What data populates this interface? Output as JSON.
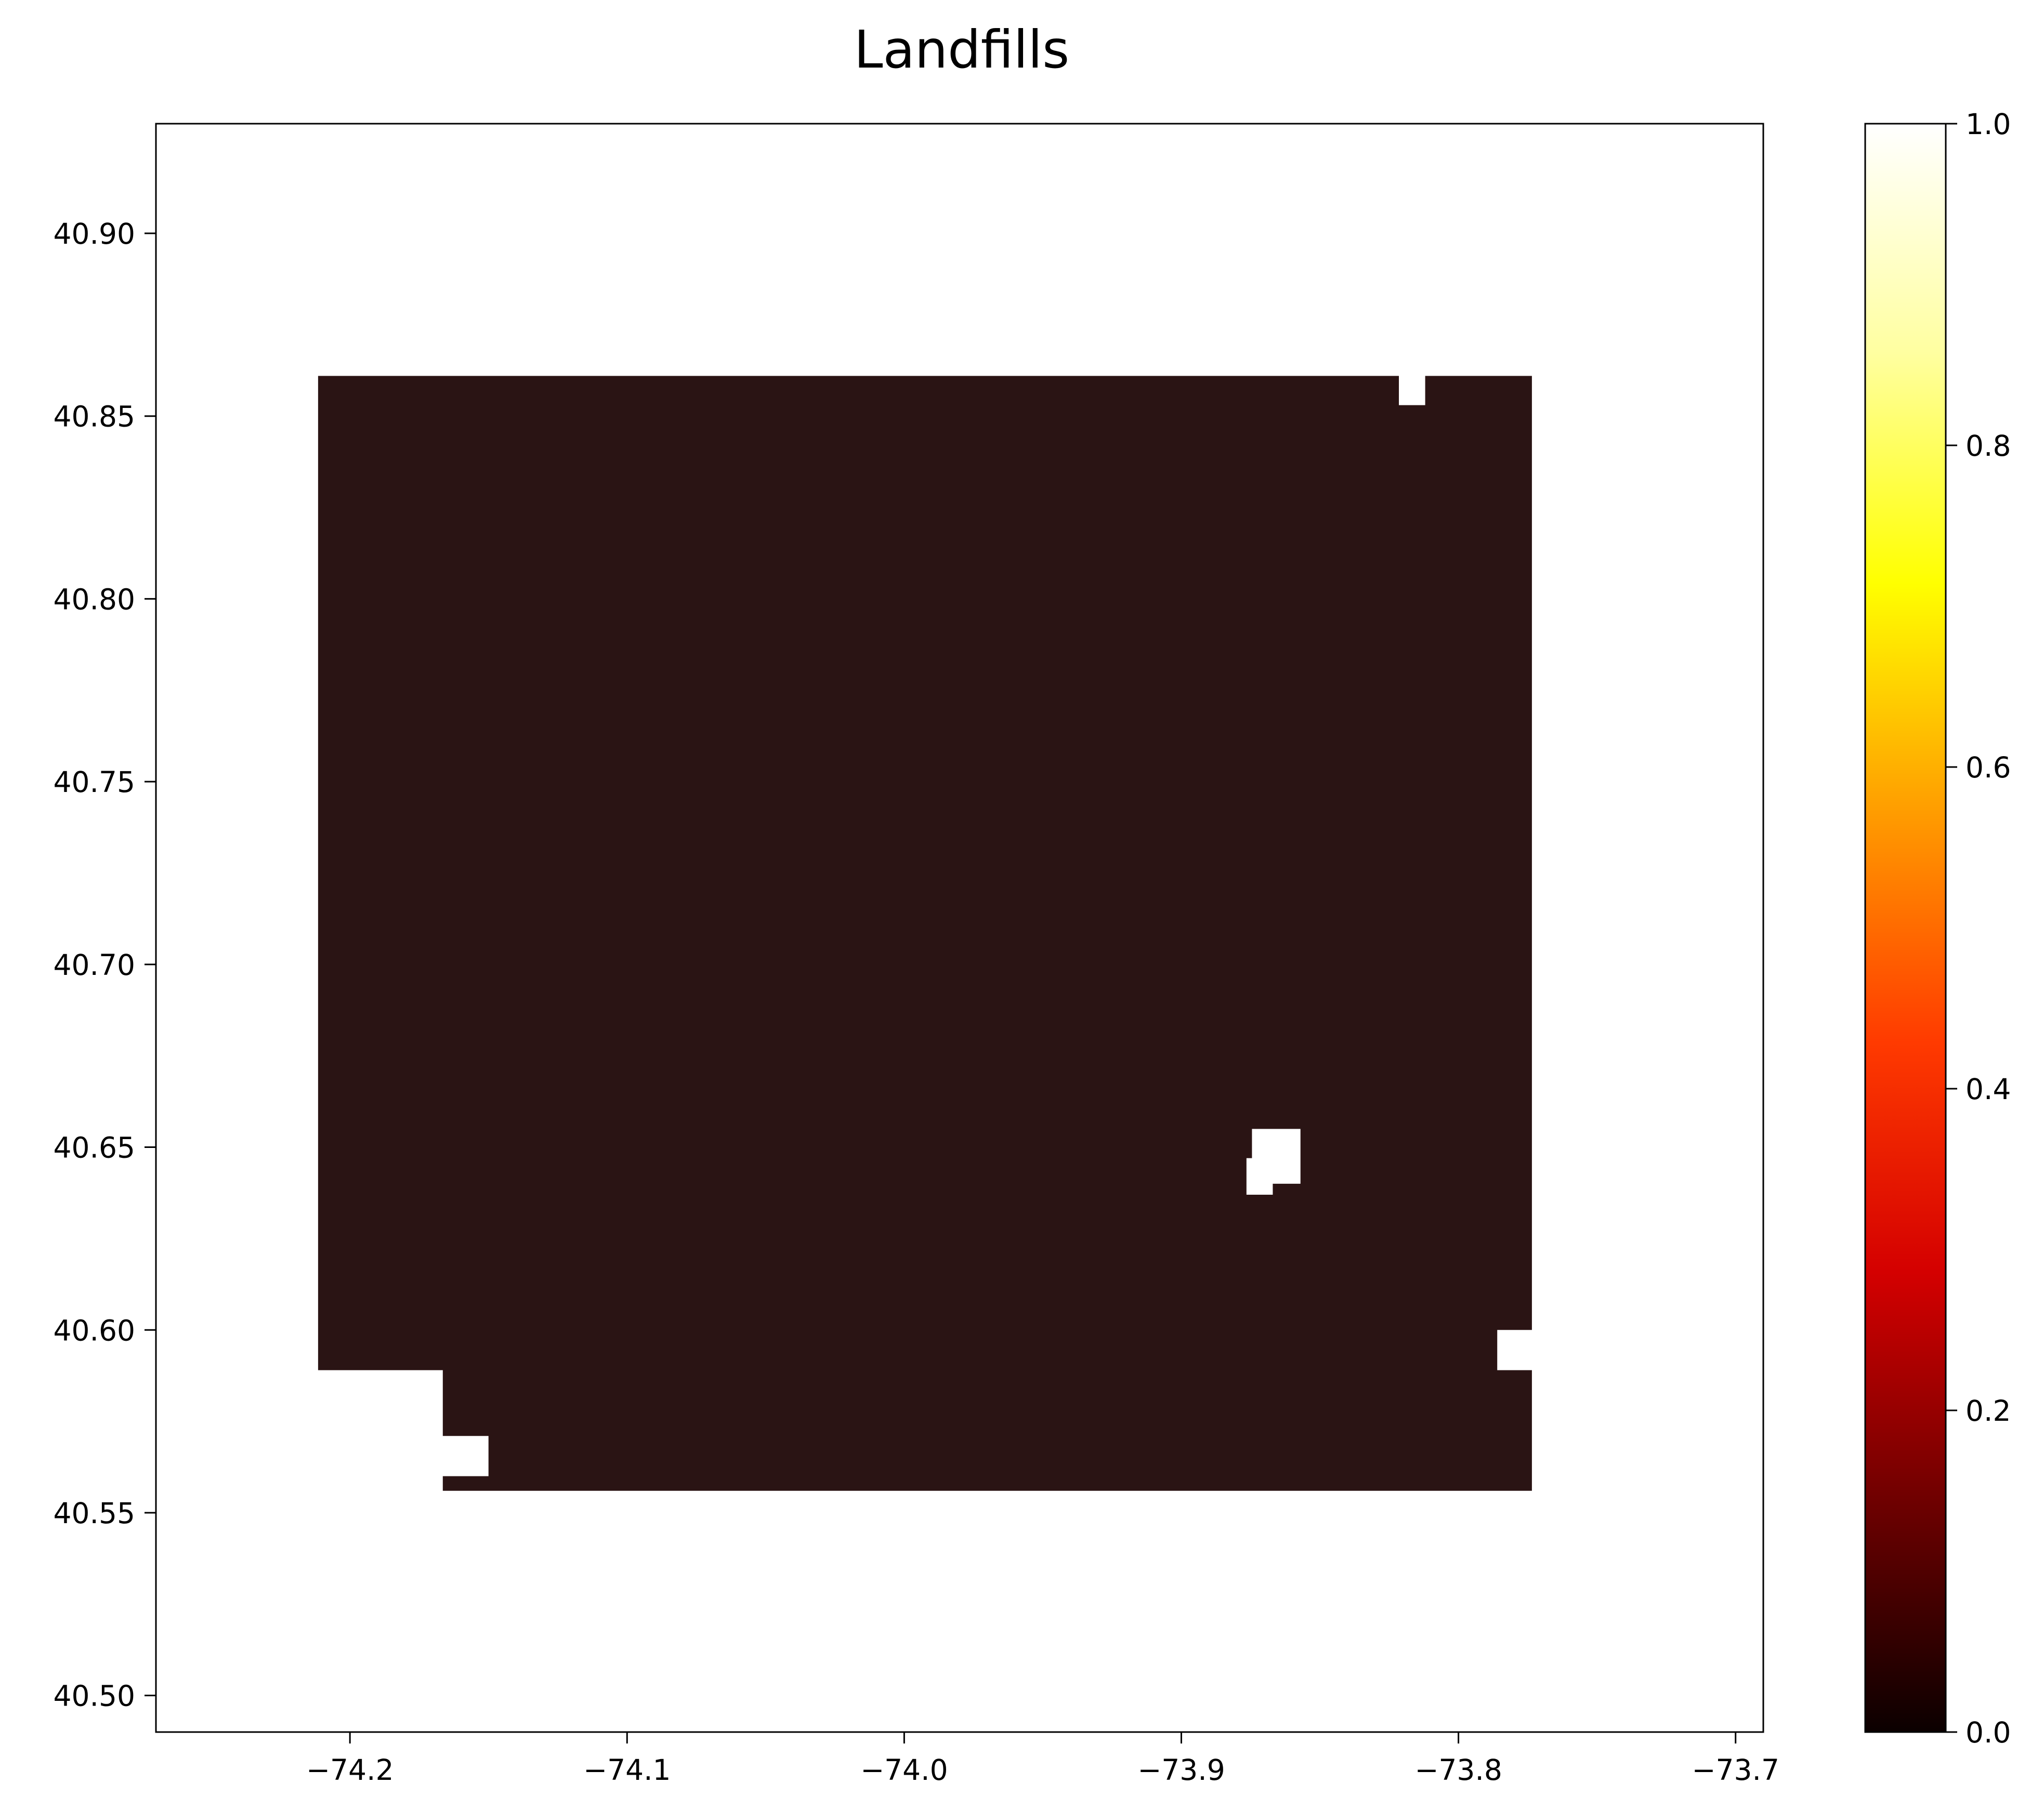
{
  "chart_data": {
    "type": "heatmap",
    "title": "Landfills",
    "xlabel": "",
    "ylabel": "",
    "xlim": [
      -74.27,
      -73.69
    ],
    "ylim": [
      40.49,
      40.93
    ],
    "x_ticks": [
      "−74.2",
      "−74.1",
      "−74.0",
      "−73.9",
      "−73.8",
      "−73.7"
    ],
    "x_tick_values": [
      -74.2,
      -74.1,
      -74.0,
      -73.9,
      -73.8,
      -73.7
    ],
    "y_ticks": [
      "40.50",
      "40.55",
      "40.60",
      "40.65",
      "40.70",
      "40.75",
      "40.80",
      "40.85",
      "40.90"
    ],
    "y_tick_values": [
      40.5,
      40.55,
      40.6,
      40.65,
      40.7,
      40.75,
      40.8,
      40.85,
      40.9
    ],
    "colormap": "hot",
    "colormap_stops": [
      "#0b0000",
      "#6e0000",
      "#d40000",
      "#ff3a00",
      "#ff9c00",
      "#ffff00",
      "#ffffa0",
      "#ffffff"
    ],
    "colorbar": {
      "range": [
        0.0,
        1.0
      ],
      "ticks": [
        "0.0",
        "0.2",
        "0.4",
        "0.6",
        "0.8",
        "1.0"
      ],
      "tick_values": [
        0.0,
        0.2,
        0.4,
        0.6,
        0.8,
        1.0
      ]
    },
    "grid": false,
    "filled_region": {
      "value": 0.08,
      "color": "#2a1414",
      "polygon": [
        [
          -74.2115,
          40.861
        ],
        [
          -73.8215,
          40.861
        ],
        [
          -73.8215,
          40.853
        ],
        [
          -73.812,
          40.853
        ],
        [
          -73.812,
          40.861
        ],
        [
          -73.7735,
          40.861
        ],
        [
          -73.7735,
          40.6
        ],
        [
          -73.786,
          40.6
        ],
        [
          -73.786,
          40.589
        ],
        [
          -73.7735,
          40.589
        ],
        [
          -73.7735,
          40.556
        ],
        [
          -74.1665,
          40.556
        ],
        [
          -74.1665,
          40.56
        ],
        [
          -74.15,
          40.56
        ],
        [
          -74.15,
          40.571
        ],
        [
          -74.1665,
          40.571
        ],
        [
          -74.1665,
          40.589
        ],
        [
          -74.2115,
          40.589
        ]
      ],
      "holes": [
        [
          [
            -73.8745,
            40.655
          ],
          [
            -73.857,
            40.655
          ],
          [
            -73.857,
            40.64
          ],
          [
            -73.867,
            40.64
          ],
          [
            -73.867,
            40.637
          ],
          [
            -73.8765,
            40.637
          ],
          [
            -73.8765,
            40.647
          ],
          [
            -73.8745,
            40.647
          ]
        ]
      ]
    }
  }
}
